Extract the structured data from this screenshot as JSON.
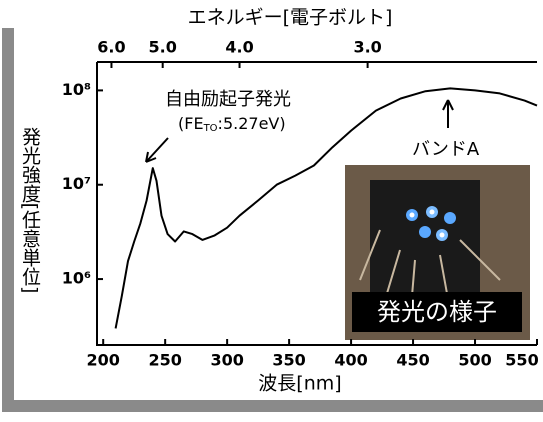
{
  "chart_data": {
    "type": "line",
    "log_y": true,
    "color": "#000000",
    "xlabel": "波長[nm]",
    "x2label": "エネルギー[電子ボルト]",
    "ylabel": "発光強度[任意単位]",
    "x": [
      210,
      215,
      220,
      225,
      230,
      235,
      240,
      243,
      247,
      252,
      258,
      265,
      272,
      280,
      290,
      300,
      310,
      325,
      340,
      355,
      370,
      385,
      400,
      420,
      440,
      460,
      480,
      500,
      520,
      540,
      550
    ],
    "values": [
      300000,
      660000,
      1550000,
      2500000,
      3900000,
      6800000,
      15000000,
      11000000,
      4700000,
      3000000,
      2500000,
      3200000,
      3000000,
      2600000,
      2900000,
      3500000,
      4700000,
      6800000,
      10000000,
      12500000,
      16000000,
      25000000,
      37500000,
      61000000,
      82000000,
      98000000,
      105000000,
      100000000,
      93000000,
      78000000,
      69000000
    ],
    "xlim": [
      195,
      550
    ],
    "xticks": [
      200,
      250,
      300,
      350,
      400,
      450,
      500,
      550
    ],
    "x2ticks": [
      {
        "value": 6,
        "label": "6.0"
      },
      {
        "value": 5,
        "label": "5.0"
      },
      {
        "value": 4,
        "label": "4.0"
      },
      {
        "value": 3,
        "label": "3.0"
      }
    ],
    "ylim": [
      200000,
      200000000
    ],
    "yticks": [
      {
        "value": 1000000,
        "label": "10⁶"
      },
      {
        "value": 10000000,
        "label": "10⁷"
      },
      {
        "value": 100000000,
        "label": "10⁸"
      }
    ],
    "annotations": [
      {
        "text": "自由励起子発光",
        "sub_parts": [
          "(FE",
          "TO",
          ":5.27eV)"
        ]
      },
      {
        "text": "バンドA"
      }
    ],
    "inset_caption": "発光の様子"
  }
}
